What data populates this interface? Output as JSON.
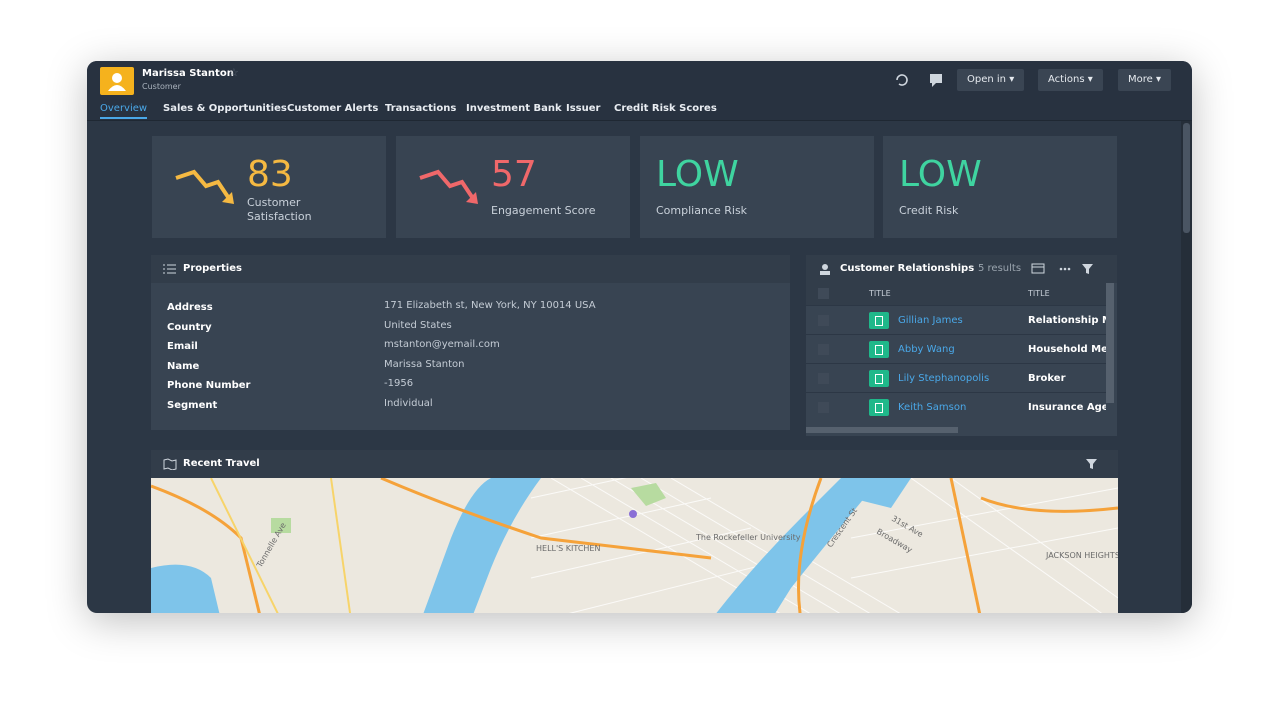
{
  "header": {
    "name": "Marissa Stanton",
    "subtitle": "Customer",
    "buttons": [
      "Open in",
      "Actions",
      "More"
    ]
  },
  "tabs": [
    "Overview",
    "Sales & Opportunities",
    "Customer Alerts",
    "Transactions",
    "Investment Bank",
    "Issuer",
    "Credit Risk Scores"
  ],
  "kpis": [
    {
      "value": 83,
      "label": "Customer Satisfaction"
    },
    {
      "value": 57,
      "label": "Engagement Score"
    },
    {
      "value": "LOW",
      "label": "Compliance Risk"
    },
    {
      "value": "LOW",
      "label": "Credit Risk"
    }
  ],
  "properties": {
    "title": "Properties",
    "rows": [
      [
        "Address",
        "171 Elizabeth st, New York, NY 10014 USA"
      ],
      [
        "Country",
        "United States"
      ],
      [
        "Email",
        "mstanton@yemail.com"
      ],
      [
        "Name",
        "Marissa Stanton"
      ],
      [
        "Phone Number",
        "-1956"
      ],
      [
        "Segment",
        "Individual"
      ]
    ]
  },
  "relationships": {
    "title": "Customer Relationships",
    "count": "5 results",
    "columns": [
      "TITLE",
      "TITLE"
    ],
    "rows": [
      [
        "Gillian James",
        "Relationship Ma"
      ],
      [
        "Abby Wang",
        "Household Men"
      ],
      [
        "Lily Stephanopolis",
        "Broker"
      ],
      [
        "Keith Samson",
        "Insurance Agen"
      ]
    ]
  },
  "travel": {
    "title": "Recent Travel",
    "map_labels": [
      "HELL'S KITCHEN",
      "The Rockefeller University",
      "JACKSON HEIGHTS",
      "Broadway",
      "31st Ave",
      "Crescent St",
      "Tonnelle Ave"
    ]
  }
}
